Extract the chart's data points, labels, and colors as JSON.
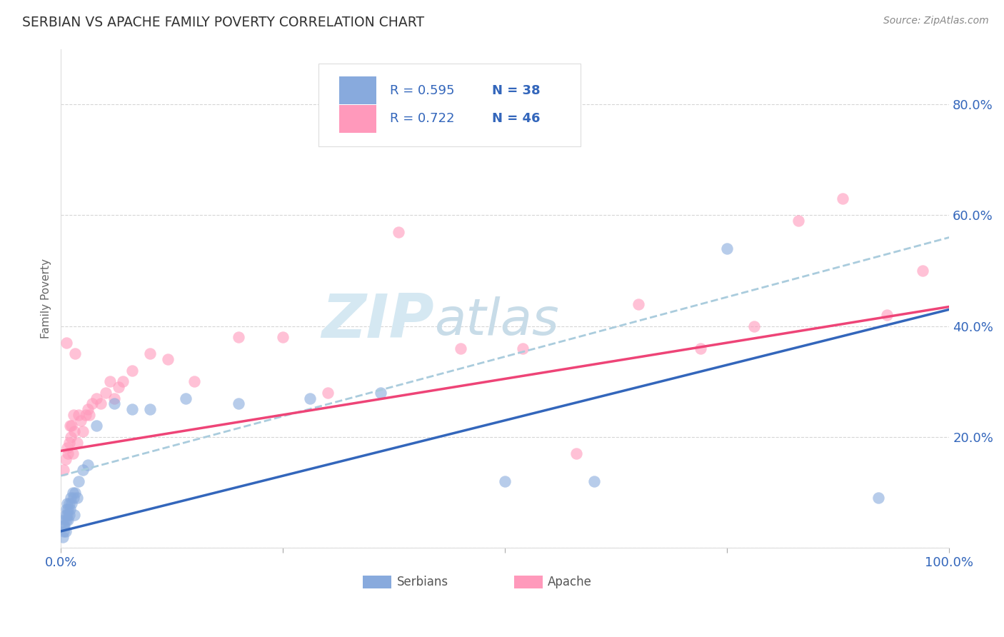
{
  "title": "SERBIAN VS APACHE FAMILY POVERTY CORRELATION CHART",
  "source": "Source: ZipAtlas.com",
  "ylabel": "Family Poverty",
  "xlim": [
    0,
    1.0
  ],
  "ylim": [
    0,
    0.9
  ],
  "x_ticks": [
    0.0,
    0.25,
    0.5,
    0.75,
    1.0
  ],
  "x_tick_labels": [
    "0.0%",
    "",
    "",
    "",
    "100.0%"
  ],
  "y_ticks": [
    0.0,
    0.2,
    0.4,
    0.6,
    0.8
  ],
  "y_tick_labels": [
    "",
    "20.0%",
    "40.0%",
    "60.0%",
    "80.0%"
  ],
  "serbian_R": 0.595,
  "serbian_N": 38,
  "apache_R": 0.722,
  "apache_N": 46,
  "serbian_color": "#88AADD",
  "apache_color": "#FF99BB",
  "serbian_line_color": "#3366BB",
  "apache_line_color": "#EE4477",
  "dashed_color": "#AACCDD",
  "legend_text_color": "#3366BB",
  "background_color": "#FFFFFF",
  "grid_color": "#CCCCCC",
  "watermark_color": "#D5E8F2",
  "serbian_x": [
    0.002,
    0.003,
    0.003,
    0.004,
    0.004,
    0.005,
    0.005,
    0.006,
    0.006,
    0.007,
    0.007,
    0.008,
    0.008,
    0.009,
    0.009,
    0.01,
    0.011,
    0.012,
    0.013,
    0.014,
    0.015,
    0.016,
    0.018,
    0.02,
    0.025,
    0.03,
    0.04,
    0.06,
    0.08,
    0.1,
    0.14,
    0.2,
    0.28,
    0.36,
    0.5,
    0.6,
    0.75,
    0.92
  ],
  "serbian_y": [
    0.02,
    0.03,
    0.04,
    0.04,
    0.05,
    0.03,
    0.06,
    0.05,
    0.07,
    0.06,
    0.08,
    0.05,
    0.07,
    0.06,
    0.08,
    0.07,
    0.09,
    0.08,
    0.1,
    0.09,
    0.06,
    0.1,
    0.09,
    0.12,
    0.14,
    0.15,
    0.22,
    0.26,
    0.25,
    0.25,
    0.27,
    0.26,
    0.27,
    0.28,
    0.12,
    0.12,
    0.54,
    0.09
  ],
  "apache_x": [
    0.003,
    0.005,
    0.006,
    0.007,
    0.008,
    0.009,
    0.01,
    0.011,
    0.012,
    0.013,
    0.014,
    0.015,
    0.016,
    0.018,
    0.02,
    0.022,
    0.025,
    0.028,
    0.03,
    0.032,
    0.035,
    0.04,
    0.045,
    0.05,
    0.055,
    0.06,
    0.065,
    0.07,
    0.08,
    0.1,
    0.12,
    0.15,
    0.2,
    0.25,
    0.3,
    0.38,
    0.45,
    0.52,
    0.58,
    0.65,
    0.72,
    0.78,
    0.83,
    0.88,
    0.93,
    0.97
  ],
  "apache_y": [
    0.14,
    0.16,
    0.37,
    0.18,
    0.17,
    0.19,
    0.22,
    0.2,
    0.22,
    0.17,
    0.24,
    0.21,
    0.35,
    0.19,
    0.24,
    0.23,
    0.21,
    0.24,
    0.25,
    0.24,
    0.26,
    0.27,
    0.26,
    0.28,
    0.3,
    0.27,
    0.29,
    0.3,
    0.32,
    0.35,
    0.34,
    0.3,
    0.38,
    0.38,
    0.28,
    0.57,
    0.36,
    0.36,
    0.17,
    0.44,
    0.36,
    0.4,
    0.59,
    0.63,
    0.42,
    0.5
  ]
}
